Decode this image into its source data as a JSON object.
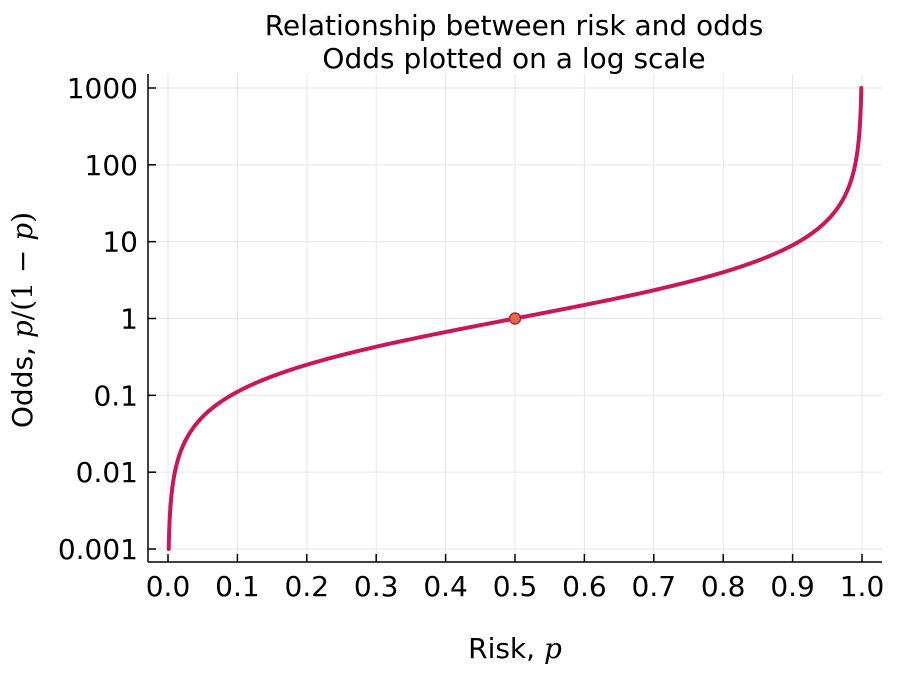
{
  "chart_data": {
    "type": "line",
    "title": "Relationship between risk and odds",
    "subtitle": "Odds plotted on a log scale",
    "xlabel_text": "Risk, ",
    "xlabel_math": "p",
    "ylabel_text": "Odds, ",
    "ylabel_math_parts": [
      "p",
      "/(1 − ",
      "p",
      ")"
    ],
    "xlim": [
      0.0,
      1.0
    ],
    "ylim": [
      0.001,
      1000
    ],
    "yscale": "log",
    "grid": true,
    "x_ticks": [
      0.0,
      0.1,
      0.2,
      0.3,
      0.4,
      0.5,
      0.6,
      0.7,
      0.8,
      0.9,
      1.0
    ],
    "x_tick_labels": [
      "0.0",
      "0.1",
      "0.2",
      "0.3",
      "0.4",
      "0.5",
      "0.6",
      "0.7",
      "0.8",
      "0.9",
      "1.0"
    ],
    "y_ticks": [
      0.001,
      0.01,
      0.1,
      1,
      10,
      100,
      1000
    ],
    "y_tick_labels": [
      "0.001",
      "0.01",
      "0.1",
      "1",
      "10",
      "100",
      "1000"
    ],
    "series": [
      {
        "function": "p/(1-p)",
        "x_range": [
          0.000999,
          0.999001
        ],
        "color": "#c8185a"
      }
    ],
    "highlight_point": {
      "x": 0.5,
      "y": 1,
      "color": "#e0703a",
      "edge_color": "#c8185a"
    }
  }
}
